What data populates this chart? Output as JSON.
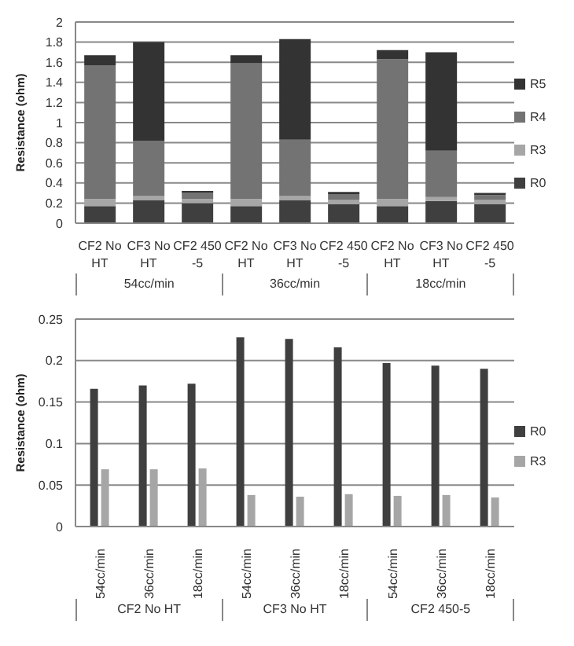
{
  "chart_data": [
    {
      "type": "bar",
      "stacked": true,
      "ylabel": "Resistance (ohm)",
      "categories": [
        "CF2 No HT",
        "CF3 No HT",
        "CF2 450-5",
        "CF2 No HT",
        "CF3 No HT",
        "CF2 450-5",
        "CF2 No HT",
        "CF3 No HT",
        "CF2 450-5"
      ],
      "series": [
        {
          "name": "R0",
          "color": "#3f3f3f",
          "values": [
            0.17,
            0.23,
            0.2,
            0.17,
            0.23,
            0.19,
            0.17,
            0.22,
            0.19
          ]
        },
        {
          "name": "R3",
          "color": "#a6a6a6",
          "values": [
            0.07,
            0.04,
            0.04,
            0.07,
            0.04,
            0.04,
            0.07,
            0.04,
            0.04
          ]
        },
        {
          "name": "R4",
          "color": "#737373",
          "values": [
            1.33,
            0.55,
            0.06,
            1.35,
            0.56,
            0.06,
            1.39,
            0.46,
            0.05
          ]
        },
        {
          "name": "R5",
          "color": "#333333",
          "values": [
            0.1,
            0.98,
            0.02,
            0.08,
            1.0,
            0.02,
            0.09,
            0.98,
            0.02
          ]
        }
      ],
      "ylim": [
        0,
        2
      ],
      "yticks": [
        0,
        0.2,
        0.4,
        0.6,
        0.8,
        1,
        1.2,
        1.4,
        1.6,
        1.8,
        2
      ],
      "grid": "y",
      "legend": "right",
      "annotations": [
        "54cc/min",
        "36cc/min",
        "18cc/min"
      ]
    },
    {
      "type": "bar",
      "ylabel": "Resistance (ohm)",
      "categories": [
        "54cc/min",
        "36cc/min",
        "18cc/min",
        "54cc/min",
        "36cc/min",
        "18cc/min",
        "54cc/min",
        "36cc/min",
        "18cc/min"
      ],
      "series": [
        {
          "name": "R0",
          "color": "#3f3f3f",
          "values": [
            0.166,
            0.17,
            0.172,
            0.228,
            0.226,
            0.216,
            0.197,
            0.194,
            0.19
          ]
        },
        {
          "name": "R3",
          "color": "#a6a6a6",
          "values": [
            0.069,
            0.069,
            0.07,
            0.038,
            0.036,
            0.039,
            0.037,
            0.038,
            0.035
          ]
        }
      ],
      "ylim": [
        0,
        0.25
      ],
      "yticks": [
        0,
        0.05,
        0.1,
        0.15,
        0.2,
        0.25
      ],
      "grid": "y",
      "legend": "right",
      "annotations": [
        "CF2 No HT",
        "CF3 No HT",
        "CF2 450-5"
      ]
    }
  ]
}
